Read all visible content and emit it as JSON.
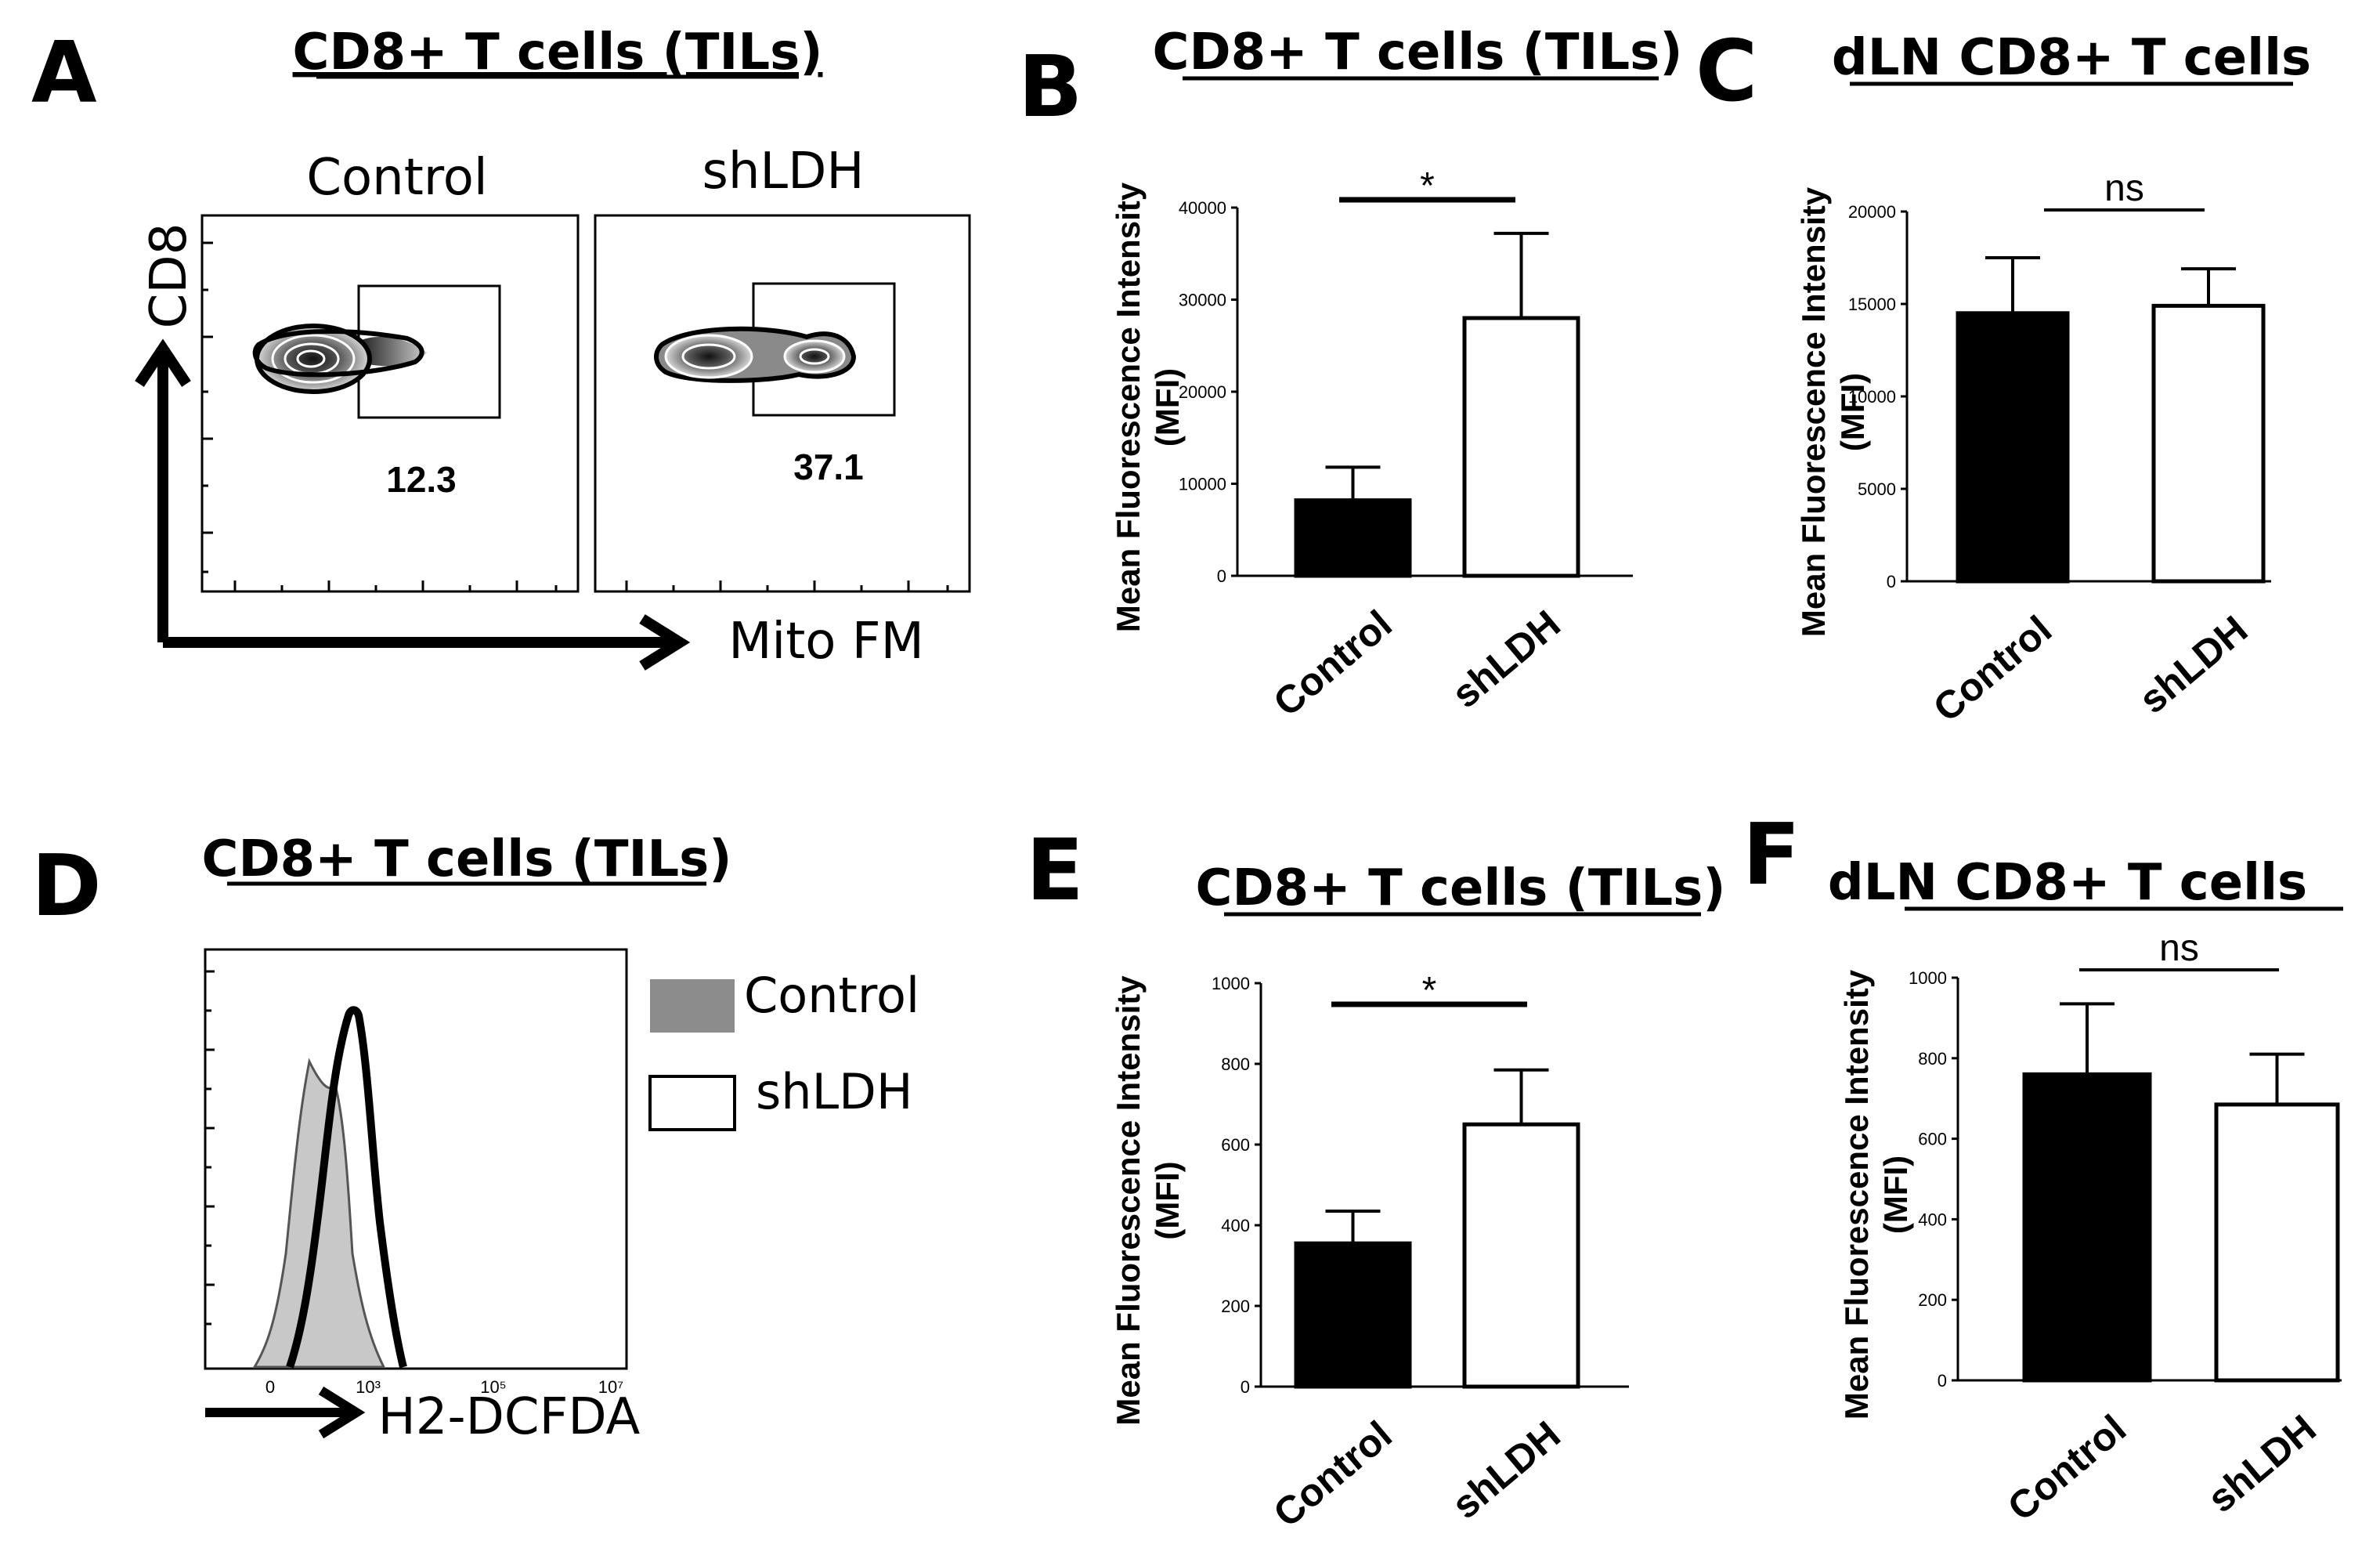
{
  "panel_letters": {
    "A": "A",
    "B": "B",
    "C": "C",
    "D": "D",
    "E": "E",
    "F": "F"
  },
  "colors": {
    "control_fill": "#000000",
    "shlDH_fill": "#ffffff",
    "histogram_control": "#c8c8c8",
    "axis": "#000000"
  },
  "panelA": {
    "title": "CD8+ T cells (TILs)",
    "plot1_title": "Control",
    "plot2_title": "shLDH",
    "yaxis": "CD8",
    "xaxis": "Mito FM",
    "gate1_pct": "12.3",
    "gate2_pct": "37.1"
  },
  "panelD": {
    "title": "CD8+ T cells (TILs)",
    "xaxis": "H2-DCFDA",
    "legend_control": "Control",
    "legend_shldh": "shLDH",
    "x_ticks": [
      "0",
      "10³",
      "10⁵",
      "10⁷"
    ]
  },
  "chart_data": [
    {
      "id": "B",
      "type": "bar",
      "title": "CD8+ T cells (TILs)",
      "ylabel": "Mean Fluorescence Intensity",
      "ylabel2": "(MFI)",
      "categories": [
        "Control",
        "shLDH"
      ],
      "values": [
        8200,
        28000
      ],
      "errors": [
        3600,
        9200
      ],
      "ylim": [
        0,
        40000
      ],
      "ticks": [
        0,
        10000,
        20000,
        30000,
        40000
      ],
      "tick_labels": [
        "0",
        "10000",
        "20000",
        "30000",
        "40000"
      ],
      "significance": "*"
    },
    {
      "id": "C",
      "type": "bar",
      "title": "dLN CD8+ T cells",
      "ylabel": "Mean Fluorescence Intensity",
      "ylabel2": "(MFI)",
      "categories": [
        "Control",
        "shLDH"
      ],
      "values": [
        14500,
        14900
      ],
      "errors": [
        3000,
        2000
      ],
      "ylim": [
        0,
        20000
      ],
      "ticks": [
        0,
        5000,
        10000,
        15000,
        20000
      ],
      "tick_labels": [
        "0",
        "5000",
        "10000",
        "15000",
        "20000"
      ],
      "significance": "ns"
    },
    {
      "id": "E",
      "type": "bar",
      "title": "CD8+ T cells (TILs)",
      "ylabel": "Mean Fluorescence Intensity",
      "ylabel2": "(MFI)",
      "categories": [
        "Control",
        "shLDH"
      ],
      "values": [
        355,
        650
      ],
      "errors": [
        80,
        135
      ],
      "ylim": [
        0,
        1000
      ],
      "ticks": [
        0,
        200,
        400,
        600,
        800,
        1000
      ],
      "tick_labels": [
        "0",
        "200",
        "400",
        "600",
        "800",
        "1000"
      ],
      "significance": "*"
    },
    {
      "id": "F",
      "type": "bar",
      "title": "dLN CD8+ T cells",
      "ylabel": "Mean Fluorescence Intensity",
      "ylabel2": "(MFI)",
      "categories": [
        "Control",
        "shLDH"
      ],
      "values": [
        760,
        685
      ],
      "errors": [
        175,
        125
      ],
      "ylim": [
        0,
        1000
      ],
      "ticks": [
        0,
        200,
        400,
        600,
        800,
        1000
      ],
      "tick_labels": [
        "0",
        "200",
        "400",
        "600",
        "800",
        "1000"
      ],
      "significance": "ns"
    }
  ]
}
